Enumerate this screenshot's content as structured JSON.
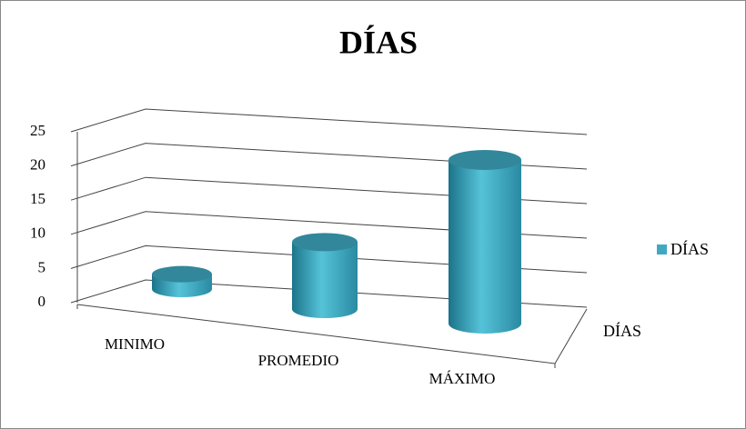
{
  "chart_data": {
    "type": "cylinder3d",
    "title": "DÍAS",
    "categories": [
      "MINIMO",
      "PROMEDIO",
      "MÁXIMO"
    ],
    "series": [
      {
        "name": "DÍAS",
        "color": "#3fa9c2",
        "values": [
          2,
          9,
          22
        ]
      }
    ],
    "depth_label": "DÍAS",
    "ylim": [
      0,
      25
    ],
    "yticks": [
      0,
      5,
      10,
      15,
      20,
      25
    ],
    "grid": true,
    "legend": "right"
  }
}
